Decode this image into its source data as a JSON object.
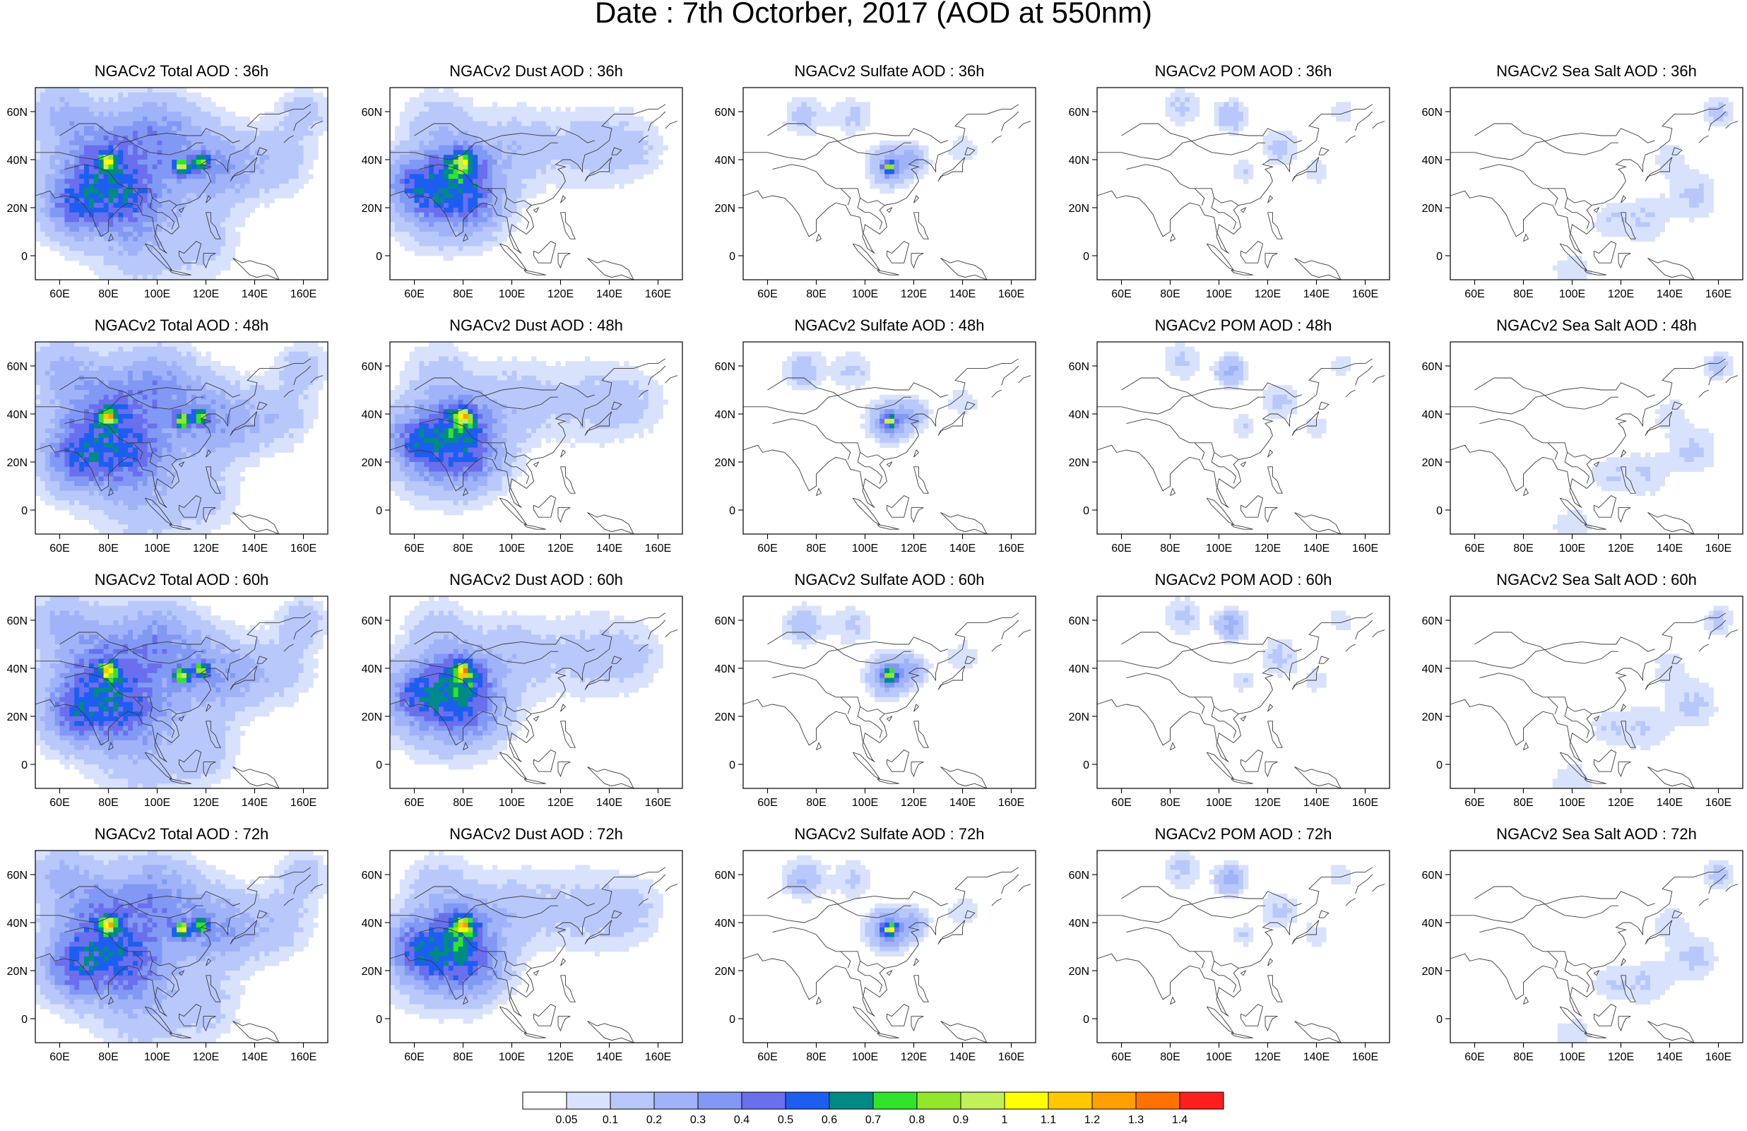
{
  "title": "Date : 7th Octorber, 2017 (AOD at 550nm)",
  "columns": [
    "Total",
    "Dust",
    "Sulfate",
    "POM",
    "Sea Salt"
  ],
  "rows": [
    "36h",
    "48h",
    "60h",
    "72h"
  ],
  "panel_titles": [
    [
      "NGACv2 Total AOD : 36h",
      "NGACv2 Dust AOD : 36h",
      "NGACv2 Sulfate AOD : 36h",
      "NGACv2 POM AOD : 36h",
      "NGACv2 Sea Salt AOD : 36h"
    ],
    [
      "NGACv2 Total AOD : 48h",
      "NGACv2 Dust AOD : 48h",
      "NGACv2 Sulfate AOD : 48h",
      "NGACv2 POM AOD : 48h",
      "NGACv2 Sea Salt AOD : 48h"
    ],
    [
      "NGACv2 Total AOD : 60h",
      "NGACv2 Dust AOD : 60h",
      "NGACv2 Sulfate AOD : 60h",
      "NGACv2 POM AOD : 60h",
      "NGACv2 Sea Salt AOD : 60h"
    ],
    [
      "NGACv2 Total AOD : 72h",
      "NGACv2 Dust AOD : 72h",
      "NGACv2 Sulfate AOD : 72h",
      "NGACv2 POM AOD : 72h",
      "NGACv2 Sea Salt  AOD : 72h"
    ]
  ],
  "map_extent": {
    "lon": [
      50,
      170
    ],
    "lat": [
      -10,
      70
    ]
  },
  "lon_ticks": [
    {
      "value": 60,
      "label": "60E"
    },
    {
      "value": 80,
      "label": "80E"
    },
    {
      "value": 100,
      "label": "100E"
    },
    {
      "value": 120,
      "label": "120E"
    },
    {
      "value": 140,
      "label": "140E"
    },
    {
      "value": 160,
      "label": "160E"
    }
  ],
  "lat_ticks": [
    {
      "value": 0,
      "label": "0"
    },
    {
      "value": 20,
      "label": "20N"
    },
    {
      "value": 40,
      "label": "40N"
    },
    {
      "value": 60,
      "label": "60N"
    }
  ],
  "colorbar": {
    "colors": [
      "#ffffff",
      "#d8e2fd",
      "#b9c8fb",
      "#a0b3f9",
      "#8199f5",
      "#6a6fee",
      "#1d5ef0",
      "#008a87",
      "#32e32e",
      "#92e72c",
      "#c2f05a",
      "#ffff00",
      "#ffc800",
      "#ff9f00",
      "#ff7200",
      "#ff1e1e"
    ],
    "labels": [
      "0.05",
      "0.1",
      "0.2",
      "0.3",
      "0.4",
      "0.5",
      "0.6",
      "0.7",
      "0.8",
      "0.9",
      "1",
      "1.1",
      "1.2",
      "1.3",
      "1.4"
    ]
  },
  "colors": {
    "coastline": "#3a3a3a",
    "frame": "#000000"
  }
}
